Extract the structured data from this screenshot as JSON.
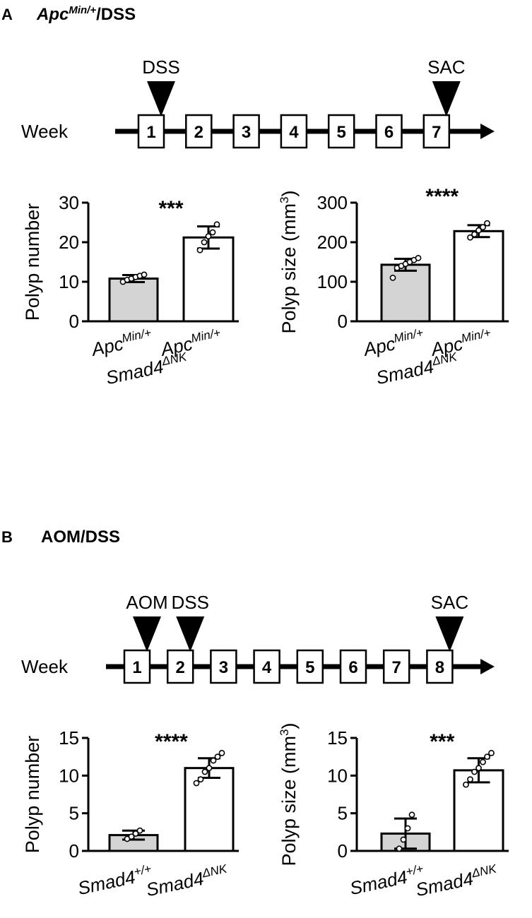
{
  "panel_a": {
    "letter": "A",
    "title_main": "Apc",
    "title_sup": "Min/+",
    "title_rest": "/DSS",
    "timeline": {
      "axis_label": "Week",
      "weeks": [
        "1",
        "2",
        "3",
        "4",
        "5",
        "6",
        "7"
      ],
      "markers": [
        {
          "label": "DSS",
          "week": 1
        },
        {
          "label": "SAC",
          "week": 7
        }
      ]
    }
  },
  "panel_b": {
    "letter": "B",
    "title": "AOM/DSS",
    "timeline": {
      "axis_label": "Week",
      "weeks": [
        "1",
        "2",
        "3",
        "4",
        "5",
        "6",
        "7",
        "8"
      ],
      "markers": [
        {
          "label": "AOM",
          "week": 1
        },
        {
          "label": "DSS",
          "week": 2
        },
        {
          "label": "SAC",
          "week": 8
        }
      ]
    }
  },
  "chart_data": [
    {
      "type": "bar",
      "panel": "A",
      "ylabel_main": "Polyp number",
      "ylabel_sup": "",
      "ylabel_tail": "",
      "ylim": [
        0,
        30
      ],
      "yticks": [
        0,
        10,
        20,
        30
      ],
      "significance": "***",
      "categories": [
        {
          "main": "Apc",
          "sup": "Min/+"
        },
        {
          "main": "Smad4",
          "sup": "ΔNK",
          "main2": "Apc",
          "sup2": "Min/+"
        }
      ],
      "values": [
        10.8,
        21.2
      ],
      "errors": [
        0.9,
        2.8
      ],
      "bar_colors": [
        "#d4d4d4",
        "#ffffff"
      ],
      "points": [
        [
          10.0,
          10.5,
          10.8,
          11.2,
          11.5,
          11.8
        ],
        [
          18.0,
          20.0,
          21.5,
          22.5,
          24.5
        ]
      ]
    },
    {
      "type": "bar",
      "panel": "A",
      "ylabel_main": "Polyp size (mm",
      "ylabel_sup": "3",
      "ylabel_tail": ")",
      "ylim": [
        0,
        300
      ],
      "yticks": [
        0,
        100,
        200,
        300
      ],
      "significance": "****",
      "categories": [
        {
          "main": "Apc",
          "sup": "Min/+"
        },
        {
          "main": "Smad4",
          "sup": "ΔNK",
          "main2": "Apc",
          "sup2": "Min/+"
        }
      ],
      "values": [
        143,
        228
      ],
      "errors": [
        15,
        15
      ],
      "bar_colors": [
        "#d4d4d4",
        "#ffffff"
      ],
      "points": [
        [
          110,
          135,
          140,
          145,
          150,
          155,
          160
        ],
        [
          212,
          220,
          230,
          238,
          248
        ]
      ]
    },
    {
      "type": "bar",
      "panel": "B",
      "ylabel_main": "Polyp number",
      "ylabel_sup": "",
      "ylabel_tail": "",
      "ylim": [
        0,
        15
      ],
      "yticks": [
        0,
        5,
        10,
        15
      ],
      "significance": "****",
      "categories": [
        {
          "main": "Smad4",
          "sup": "+/+"
        },
        {
          "main": "Smad4",
          "sup": "ΔNK"
        }
      ],
      "values": [
        2.1,
        11.0
      ],
      "errors": [
        0.6,
        1.3
      ],
      "bar_colors": [
        "#d4d4d4",
        "#ffffff"
      ],
      "points": [
        [
          1.6,
          1.9,
          2.3,
          2.7
        ],
        [
          9.0,
          9.5,
          10.5,
          11.0,
          12.0,
          12.5,
          13.0
        ]
      ]
    },
    {
      "type": "bar",
      "panel": "B",
      "ylabel_main": "Polyp size (mm",
      "ylabel_sup": "3",
      "ylabel_tail": ")",
      "ylim": [
        0,
        15
      ],
      "yticks": [
        0,
        5,
        10,
        15
      ],
      "significance": "***",
      "categories": [
        {
          "main": "Smad4",
          "sup": "+/+"
        },
        {
          "main": "Smad4",
          "sup": "ΔNK"
        }
      ],
      "values": [
        2.3,
        10.7
      ],
      "errors": [
        2.0,
        1.6
      ],
      "bar_colors": [
        "#d4d4d4",
        "#ffffff"
      ],
      "points": [
        [
          0.3,
          1.5,
          3.0,
          4.8
        ],
        [
          8.8,
          9.5,
          10.5,
          11.0,
          11.8,
          12.5,
          13.0
        ]
      ]
    }
  ]
}
